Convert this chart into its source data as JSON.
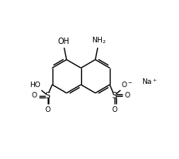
{
  "bg_color": "#ffffff",
  "line_color": "#000000",
  "font_size": 6.5,
  "bond_width": 1.0,
  "figsize": [
    2.25,
    1.99
  ],
  "dpi": 100,
  "xlim": [
    0,
    1
  ],
  "ylim": [
    0,
    1
  ]
}
